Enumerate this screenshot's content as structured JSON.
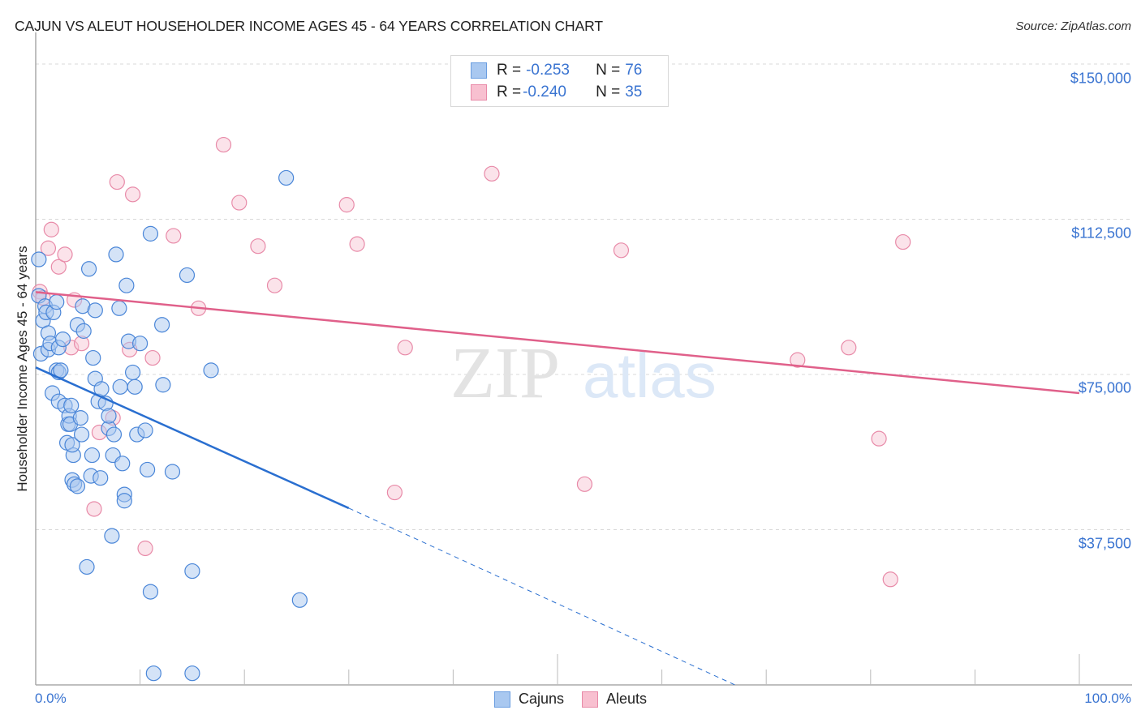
{
  "header": {
    "title": "CAJUN VS ALEUT HOUSEHOLDER INCOME AGES 45 - 64 YEARS CORRELATION CHART",
    "source": "Source: ZipAtlas.com"
  },
  "legend_top": {
    "rows": [
      {
        "r_label": "R = ",
        "r_value": "-0.253",
        "n_label": "N = ",
        "n_value": "76",
        "color": "#a9c8f0",
        "border": "#6a9de0"
      },
      {
        "r_label": "R = ",
        "r_value": "-0.240",
        "n_label": "N = ",
        "n_value": "35",
        "color": "#f8c0d0",
        "border": "#e88aa8"
      }
    ]
  },
  "legend_bottom": {
    "items": [
      {
        "label": "Cajuns",
        "color": "#a9c8f0",
        "border": "#6a9de0"
      },
      {
        "label": "Aleuts",
        "color": "#f8c0d0",
        "border": "#e88aa8"
      }
    ]
  },
  "axes": {
    "ylabel": "Householder Income Ages 45 - 64 years",
    "yticks": [
      "$150,000",
      "$112,500",
      "$75,000",
      "$37,500"
    ],
    "xticks": [
      "0.0%",
      "100.0%"
    ]
  },
  "watermark": {
    "zip": "ZIP",
    "atlas": "atlas"
  },
  "colors": {
    "cajun_fill": "#a9c8f0",
    "cajun_stroke": "#4a86d8",
    "cajun_line": "#2a6fd0",
    "aleut_fill": "#f8c8d6",
    "aleut_stroke": "#e88aa8",
    "aleut_line": "#e0608a",
    "tick_label": "#3a74d1"
  },
  "chart_data": {
    "type": "scatter",
    "title": "CAJUN VS ALEUT HOUSEHOLDER INCOME AGES 45 - 64 YEARS CORRELATION CHART",
    "xlabel": "",
    "ylabel": "Householder Income Ages 45 - 64 years",
    "xlim": [
      0,
      100
    ],
    "ylim": [
      0,
      153000
    ],
    "x_unit": "%",
    "yticks": [
      37500,
      75000,
      112500,
      150000
    ],
    "grid": "horizontal dashed",
    "legend_position": "top-center and bottom",
    "series": [
      {
        "name": "Cajuns",
        "R": -0.253,
        "N": 76,
        "trend": {
          "x0": 0,
          "y0": 76700,
          "x1": 30,
          "y1": 42700,
          "dashed_extension_to": {
            "x": 67,
            "y": 0
          }
        },
        "points": [
          [
            0.3,
            102800
          ],
          [
            0.3,
            94000
          ],
          [
            0.5,
            80000
          ],
          [
            0.7,
            88000
          ],
          [
            0.9,
            91500
          ],
          [
            1.0,
            90000
          ],
          [
            1.2,
            85000
          ],
          [
            1.2,
            81000
          ],
          [
            1.4,
            82500
          ],
          [
            1.6,
            70500
          ],
          [
            1.7,
            90000
          ],
          [
            2.0,
            92500
          ],
          [
            2.2,
            68500
          ],
          [
            2.0,
            76000
          ],
          [
            2.2,
            75500
          ],
          [
            2.4,
            76000
          ],
          [
            2.2,
            81500
          ],
          [
            2.6,
            83500
          ],
          [
            2.8,
            67500
          ],
          [
            3.0,
            58500
          ],
          [
            3.1,
            63000
          ],
          [
            3.2,
            65000
          ],
          [
            3.3,
            63000
          ],
          [
            3.4,
            67500
          ],
          [
            3.6,
            55500
          ],
          [
            3.5,
            58000
          ],
          [
            3.5,
            49500
          ],
          [
            3.7,
            48500
          ],
          [
            4.0,
            48000
          ],
          [
            4.0,
            87000
          ],
          [
            4.5,
            91500
          ],
          [
            4.3,
            64500
          ],
          [
            4.4,
            60500
          ],
          [
            4.6,
            85500
          ],
          [
            5.1,
            100500
          ],
          [
            5.3,
            50500
          ],
          [
            5.4,
            55500
          ],
          [
            5.5,
            79000
          ],
          [
            5.7,
            74000
          ],
          [
            5.7,
            90500
          ],
          [
            6.0,
            68500
          ],
          [
            6.2,
            50000
          ],
          [
            6.3,
            71500
          ],
          [
            6.7,
            68000
          ],
          [
            7.0,
            62000
          ],
          [
            7.4,
            55500
          ],
          [
            7.5,
            60500
          ],
          [
            7.7,
            104000
          ],
          [
            8.0,
            91000
          ],
          [
            8.1,
            72000
          ],
          [
            8.3,
            53500
          ],
          [
            8.5,
            46000
          ],
          [
            8.5,
            44500
          ],
          [
            8.7,
            96500
          ],
          [
            8.9,
            83000
          ],
          [
            9.5,
            72000
          ],
          [
            9.7,
            60500
          ],
          [
            10.0,
            82500
          ],
          [
            10.5,
            61500
          ],
          [
            10.7,
            52000
          ],
          [
            11.0,
            109000
          ],
          [
            12.1,
            87000
          ],
          [
            12.2,
            72500
          ],
          [
            13.1,
            51500
          ],
          [
            14.5,
            99000
          ],
          [
            16.8,
            76000
          ],
          [
            7.3,
            36000
          ],
          [
            4.9,
            28500
          ],
          [
            11.0,
            22500
          ],
          [
            15.0,
            27500
          ],
          [
            25.3,
            20500
          ],
          [
            24.0,
            122500
          ],
          [
            11.3,
            2800
          ],
          [
            15.0,
            2800
          ],
          [
            7.0,
            65000
          ],
          [
            9.3,
            75500
          ]
        ]
      },
      {
        "name": "Aleuts",
        "R": -0.24,
        "N": 35,
        "trend": {
          "x0": 0,
          "y0": 94900,
          "x1": 100,
          "y1": 70500
        },
        "points": [
          [
            0.4,
            95000
          ],
          [
            0.7,
            93500
          ],
          [
            1.2,
            105500
          ],
          [
            1.5,
            110000
          ],
          [
            2.2,
            101000
          ],
          [
            2.8,
            104000
          ],
          [
            3.4,
            81500
          ],
          [
            3.7,
            93000
          ],
          [
            4.4,
            82500
          ],
          [
            5.6,
            42500
          ],
          [
            6.1,
            61000
          ],
          [
            7.4,
            64500
          ],
          [
            7.8,
            121500
          ],
          [
            9.0,
            81000
          ],
          [
            9.3,
            118500
          ],
          [
            10.5,
            33000
          ],
          [
            11.2,
            79000
          ],
          [
            13.2,
            108500
          ],
          [
            15.6,
            91000
          ],
          [
            18.0,
            130500
          ],
          [
            19.5,
            116500
          ],
          [
            21.3,
            106000
          ],
          [
            22.9,
            96500
          ],
          [
            29.8,
            116000
          ],
          [
            30.8,
            106500
          ],
          [
            34.4,
            46500
          ],
          [
            35.4,
            81500
          ],
          [
            43.7,
            123500
          ],
          [
            52.6,
            48500
          ],
          [
            56.1,
            105000
          ],
          [
            73.0,
            78500
          ],
          [
            77.9,
            81500
          ],
          [
            80.8,
            59500
          ],
          [
            81.9,
            25500
          ],
          [
            83.1,
            107000
          ]
        ]
      }
    ]
  }
}
